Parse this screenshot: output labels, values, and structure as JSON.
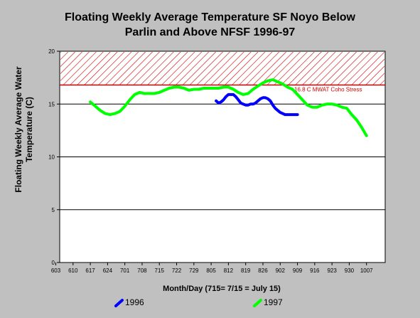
{
  "chart_data": {
    "type": "line",
    "title": [
      "Floating Weekly Average Temperature SF Noyo Below",
      "Parlin and Above NFSF 1996-97"
    ],
    "ylabel": [
      "Floating Weekly Average Water",
      "Temperature (C)"
    ],
    "xlabel": "Month/Day (715= 7/15 = July 15)",
    "ylim": [
      0,
      20
    ],
    "yticks": [
      "0",
      "5",
      "10",
      "15",
      "20"
    ],
    "ytick_values": [
      0,
      5,
      10,
      15,
      20
    ],
    "xlim": [
      603,
      1014
    ],
    "xticks": [
      "603",
      "610",
      "617",
      "624",
      "701",
      "708",
      "715",
      "722",
      "729",
      "805",
      "812",
      "819",
      "826",
      "902",
      "909",
      "916",
      "923",
      "930",
      "1007"
    ],
    "threshold": {
      "value": 16.8,
      "label": "16.8 C MWAT Coho Stress",
      "color": "#cc0000"
    },
    "series": [
      {
        "name": "1996",
        "color": "#0000ff",
        "x": [
          65,
          66,
          67,
          68,
          69,
          70,
          71,
          72,
          73,
          74,
          75,
          76,
          77,
          78,
          79,
          80,
          81,
          82,
          83,
          84,
          85,
          86,
          87,
          88,
          89,
          90,
          91,
          92,
          93,
          94,
          95,
          96,
          97,
          98
        ],
        "y": [
          15.3,
          15.1,
          15.2,
          15.4,
          15.7,
          15.9,
          15.9,
          15.9,
          15.7,
          15.4,
          15.1,
          15.0,
          14.9,
          14.9,
          15.0,
          15.0,
          15.1,
          15.3,
          15.5,
          15.6,
          15.6,
          15.5,
          15.3,
          14.9,
          14.6,
          14.4,
          14.2,
          14.1,
          14.0,
          14.0,
          14.0,
          14.0,
          14.0,
          14.0
        ]
      },
      {
        "name": "1997",
        "color": "#00ff00",
        "x": [
          14,
          16,
          18,
          20,
          22,
          24,
          26,
          28,
          30,
          32,
          34,
          36,
          38,
          40,
          42,
          44,
          46,
          48,
          50,
          52,
          54,
          56,
          58,
          60,
          62,
          64,
          66,
          68,
          70,
          72,
          74,
          76,
          78,
          80,
          82,
          84,
          86,
          88,
          90,
          92,
          94,
          96,
          98,
          100,
          102,
          104,
          106,
          108,
          110,
          112,
          114,
          116,
          118,
          120,
          122,
          124,
          126
        ],
        "y": [
          15.2,
          14.8,
          14.4,
          14.1,
          14.0,
          14.1,
          14.3,
          14.8,
          15.4,
          15.9,
          16.1,
          16.0,
          16.0,
          16.0,
          16.1,
          16.3,
          16.5,
          16.6,
          16.6,
          16.5,
          16.3,
          16.4,
          16.4,
          16.5,
          16.5,
          16.5,
          16.5,
          16.6,
          16.6,
          16.4,
          16.1,
          15.9,
          16.0,
          16.4,
          16.7,
          17.0,
          17.2,
          17.3,
          17.1,
          16.9,
          16.6,
          16.4,
          15.9,
          15.4,
          14.9,
          14.7,
          14.7,
          14.9,
          15.0,
          15.0,
          14.9,
          14.7,
          14.6,
          14.0,
          13.5,
          12.8,
          12.0
        ]
      }
    ],
    "legend": "bottom",
    "grid": "horizontal"
  }
}
